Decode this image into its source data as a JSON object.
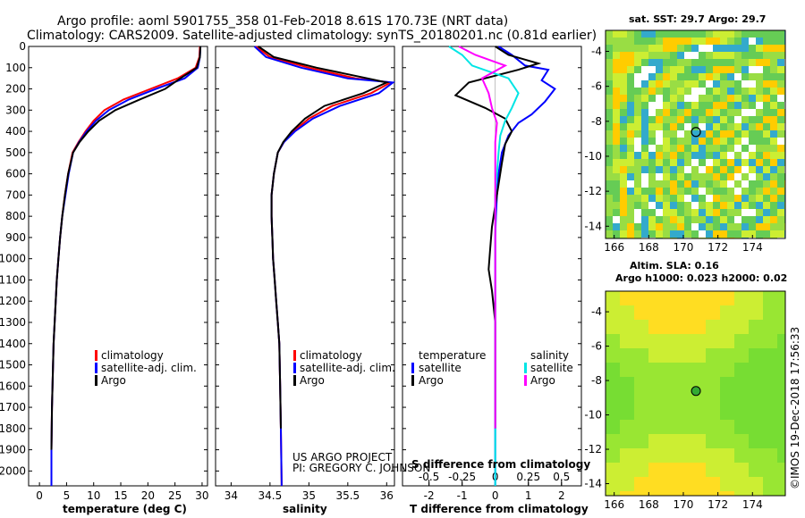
{
  "header": {
    "line1": "Argo profile: aoml 5901755_358 01-Feb-2018 8.61S 170.73E (NRT data)",
    "line2": "Climatology: CARS2009. Satellite-adjusted climatology: synTS_20180201.nc (0.81d earlier)"
  },
  "colors": {
    "climatology": "#ff0000",
    "satellite": "#0000ff",
    "argo": "#000000",
    "sat_salinity": "#00e5e5",
    "argo_salinity": "#ff00ff"
  },
  "chart_data": [
    {
      "type": "line",
      "xlabel": "temperature (deg C)",
      "ylabel": "",
      "xlim": [
        -2,
        31
      ],
      "ylim": [
        2070,
        0
      ],
      "xticks": [
        0,
        5,
        10,
        15,
        20,
        25,
        30
      ],
      "yticks": [
        0,
        100,
        200,
        300,
        400,
        500,
        600,
        700,
        800,
        900,
        1000,
        1100,
        1200,
        1300,
        1400,
        1500,
        1600,
        1700,
        1800,
        1900,
        2000
      ],
      "legend": [
        "climatology",
        "satellite-adj. clim.",
        "Argo"
      ],
      "series": [
        {
          "name": "climatology",
          "x": [
            29.6,
            29.5,
            28.8,
            25.5,
            20.5,
            15.5,
            12,
            10,
            8.5,
            7.2,
            6.1,
            5.3,
            4.7,
            4.2,
            3.8,
            3.5,
            3.2,
            3.0,
            2.8,
            2.6,
            2.5,
            2.4,
            2.3,
            2.2,
            2.2
          ],
          "y": [
            0,
            50,
            100,
            150,
            200,
            250,
            300,
            350,
            400,
            450,
            500,
            600,
            700,
            800,
            900,
            1000,
            1100,
            1200,
            1300,
            1400,
            1500,
            1600,
            1700,
            1900,
            2070
          ]
        },
        {
          "name": "satellite-adj. clim.",
          "x": [
            29.7,
            29.6,
            29.2,
            26.8,
            21.5,
            16.5,
            12.8,
            10.4,
            8.7,
            7.3,
            6.2,
            5.4,
            4.8,
            4.2,
            3.8,
            3.5,
            3.2,
            3.0,
            2.8,
            2.6,
            2.5,
            2.4,
            2.3,
            2.2,
            2.2
          ],
          "y": [
            0,
            50,
            100,
            150,
            200,
            250,
            300,
            350,
            400,
            450,
            500,
            600,
            700,
            800,
            900,
            1000,
            1100,
            1200,
            1300,
            1400,
            1500,
            1600,
            1700,
            1900,
            2070
          ]
        },
        {
          "name": "Argo",
          "x": [
            29.7,
            29.6,
            29.0,
            26.0,
            23.2,
            18.5,
            14.0,
            11.0,
            9.0,
            7.4,
            6.2,
            5.3,
            4.7,
            4.2,
            3.8,
            3.5,
            3.2,
            3.0,
            2.8,
            2.6,
            2.5,
            2.4,
            2.3,
            2.2
          ],
          "y": [
            0,
            50,
            100,
            150,
            200,
            250,
            300,
            350,
            400,
            450,
            500,
            600,
            700,
            800,
            900,
            1000,
            1100,
            1200,
            1300,
            1400,
            1500,
            1600,
            1700,
            1900
          ]
        }
      ]
    },
    {
      "type": "line",
      "xlabel": "salinity",
      "xlim": [
        33.8,
        36.1
      ],
      "ylim": [
        2070,
        0
      ],
      "xticks": [
        34,
        34.5,
        35,
        35.5,
        36
      ],
      "xticklabels": [
        "34",
        "34.5",
        "35",
        "35.5",
        "36"
      ],
      "legend": [
        "climatology",
        "satellite-adj. clim.",
        "Argo"
      ],
      "series": [
        {
          "name": "climatology",
          "x": [
            34.32,
            34.5,
            35.0,
            35.6,
            36.05,
            35.8,
            35.3,
            35.0,
            34.8,
            34.68,
            34.6,
            34.55,
            34.52,
            34.52,
            34.53,
            34.54,
            34.56,
            34.58,
            34.6,
            34.62,
            34.63,
            34.64,
            34.65
          ],
          "y": [
            0,
            50,
            100,
            150,
            170,
            220,
            280,
            340,
            400,
            450,
            500,
            600,
            700,
            800,
            900,
            1000,
            1100,
            1200,
            1300,
            1400,
            1600,
            1800,
            2070
          ]
        },
        {
          "name": "satellite-adj. clim.",
          "x": [
            34.3,
            34.45,
            34.9,
            35.5,
            36.08,
            35.9,
            35.4,
            35.05,
            34.82,
            34.68,
            34.6,
            34.55,
            34.52,
            34.52,
            34.53,
            34.54,
            34.56,
            34.58,
            34.6,
            34.62,
            34.63,
            34.64,
            34.65
          ],
          "y": [
            0,
            50,
            100,
            150,
            170,
            220,
            280,
            340,
            400,
            450,
            500,
            600,
            700,
            800,
            900,
            1000,
            1100,
            1200,
            1300,
            1400,
            1600,
            1800,
            2070
          ]
        },
        {
          "name": "Argo",
          "x": [
            34.35,
            34.55,
            35.1,
            35.75,
            36.0,
            35.7,
            35.2,
            34.95,
            34.78,
            34.67,
            34.6,
            34.55,
            34.52,
            34.52,
            34.53,
            34.54,
            34.56,
            34.58,
            34.6,
            34.62,
            34.63,
            34.64
          ],
          "y": [
            0,
            50,
            100,
            150,
            170,
            220,
            280,
            340,
            400,
            450,
            500,
            600,
            700,
            800,
            900,
            1000,
            1100,
            1200,
            1300,
            1400,
            1600,
            1800
          ]
        }
      ]
    },
    {
      "type": "line",
      "xlabel": "T difference from climatology",
      "xlabel2": "S difference from climatology",
      "xlim": [
        -2.8,
        2.6
      ],
      "ylim": [
        2070,
        0
      ],
      "xticks": [
        -2,
        -1,
        0,
        1,
        2
      ],
      "s_xticks": [
        -0.5,
        -0.25,
        0,
        0.25,
        0.5
      ],
      "s_xticklabels": [
        "-0.5",
        "-0.25",
        "0",
        "0.25",
        "0.5"
      ],
      "s_scale": 4,
      "legend_temperature": [
        "temperature",
        "satellite",
        "Argo"
      ],
      "legend_salinity": [
        "salinity",
        "satellite",
        "Argo"
      ],
      "series": [
        {
          "name": "T satellite",
          "x": [
            0.1,
            0.5,
            0.9,
            1.6,
            1.4,
            1.8,
            1.5,
            1.1,
            0.7,
            0.4,
            0.2,
            0.1,
            0.05,
            0.02,
            0.0,
            0.0,
            0.0,
            0.0,
            0.0,
            0.0,
            0.0
          ],
          "y": [
            0,
            40,
            90,
            110,
            160,
            200,
            260,
            320,
            360,
            420,
            500,
            600,
            700,
            800,
            900,
            1000,
            1200,
            1400,
            1600,
            1800,
            2070
          ]
        },
        {
          "name": "T Argo",
          "x": [
            0.0,
            0.4,
            1.3,
            0.7,
            -0.8,
            -1.2,
            -0.3,
            0.3,
            0.5,
            0.3,
            0.2,
            0.1,
            0.0,
            -0.1,
            -0.15,
            -0.2,
            -0.1,
            0.0,
            0.0,
            0.0
          ],
          "y": [
            0,
            40,
            80,
            110,
            170,
            230,
            290,
            340,
            400,
            460,
            550,
            650,
            750,
            850,
            950,
            1050,
            1150,
            1300,
            1500,
            1800
          ]
        },
        {
          "name": "S satellite",
          "x": [
            -1.4,
            -1.0,
            -0.7,
            0.4,
            0.7,
            0.5,
            0.3,
            0.15,
            0.1,
            0.05,
            0.0,
            0.0,
            0.0,
            0.0,
            0.0,
            0.0
          ],
          "y": [
            0,
            40,
            90,
            150,
            220,
            290,
            350,
            420,
            500,
            600,
            700,
            900,
            1100,
            1400,
            1700,
            2070
          ]
        },
        {
          "name": "S Argo",
          "x": [
            -1.1,
            -0.6,
            0.3,
            -0.4,
            -0.2,
            -0.1,
            0.05,
            0.0,
            0.0,
            0.0,
            0.0,
            0.0,
            0.0,
            0.0
          ],
          "y": [
            0,
            40,
            90,
            150,
            220,
            290,
            360,
            450,
            600,
            800,
            1000,
            1300,
            1600,
            1800
          ]
        }
      ]
    },
    {
      "type": "heatmap",
      "title": "sat. SST: 29.7 Argo: 29.7",
      "xlim": [
        165.5,
        175.9
      ],
      "ylim": [
        -14.7,
        -2.8
      ],
      "xticks": [
        166,
        168,
        170,
        172,
        174
      ],
      "yticks": [
        -4,
        -6,
        -8,
        -10,
        -12,
        -14
      ],
      "marker": {
        "lon": 170.73,
        "lat": -8.61
      }
    },
    {
      "type": "heatmap",
      "title": "Altim. SLA: 0.16",
      "title2": "Argo h1000: 0.023 h2000: 0.02",
      "xlim": [
        165.5,
        175.9
      ],
      "ylim": [
        -14.7,
        -2.8
      ],
      "xticks": [
        166,
        168,
        170,
        172,
        174
      ],
      "yticks": [
        -4,
        -6,
        -8,
        -10,
        -12,
        -14
      ],
      "marker": {
        "lon": 170.73,
        "lat": -8.61
      }
    }
  ],
  "credits": {
    "project": "US ARGO PROJECT",
    "pi": "PI: GREGORY C. JOHNSON",
    "stamp": "©IMOS 19-Dec-2018 17:56:33"
  }
}
